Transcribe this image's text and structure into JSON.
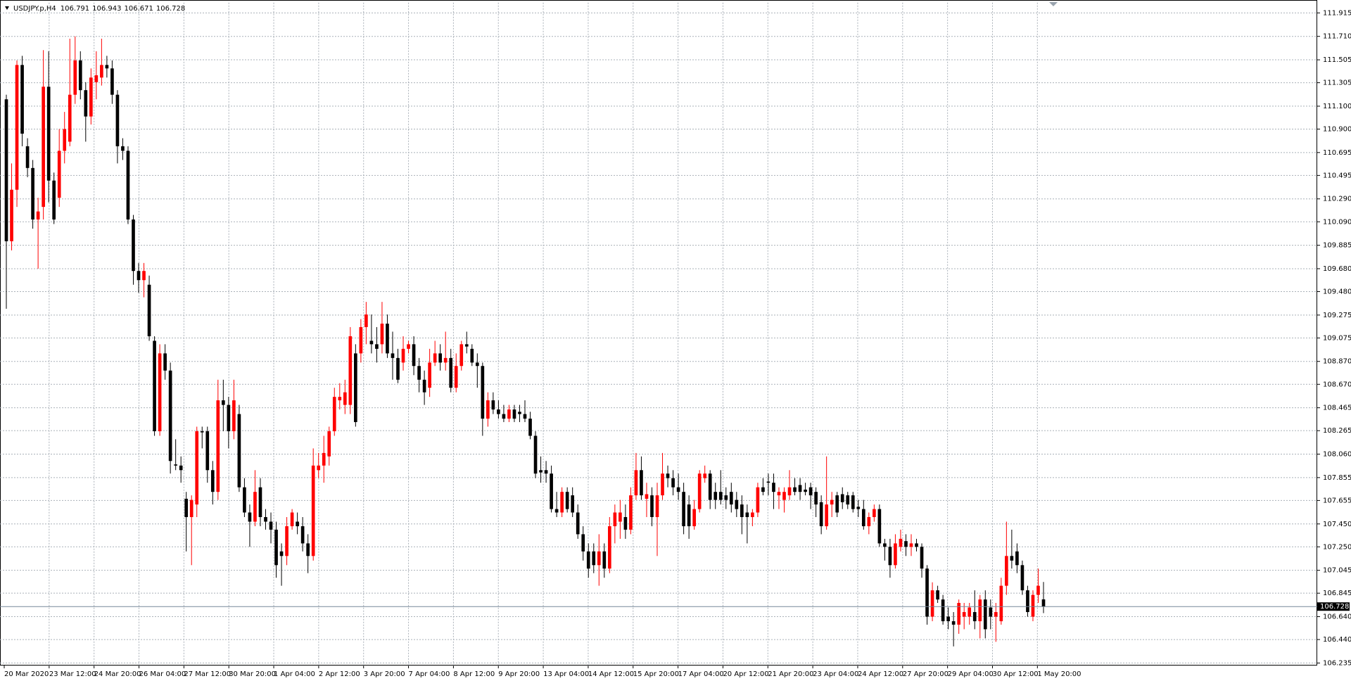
{
  "chart_data": {
    "type": "candlestick",
    "symbol": "USDJPY.p,H4",
    "up_color": "#ff0000",
    "down_color": "#000000",
    "grid": true,
    "ylim": [
      106.213,
      112.005
    ],
    "yticks": [
      111.915,
      {
        "value": 111.71,
        "label": "111.710"
      },
      111.505,
      111.305,
      {
        "value": 111.1,
        "label": "111.100"
      },
      {
        "value": 110.9,
        "label": "110.900"
      },
      110.695,
      110.495,
      {
        "value": 110.29,
        "label": "110.290"
      },
      {
        "value": 110.09,
        "label": "110.090"
      },
      109.885,
      {
        "value": 109.68,
        "label": "109.680"
      },
      {
        "value": 109.48,
        "label": "109.480"
      },
      109.275,
      109.075,
      {
        "value": 108.87,
        "label": "108.870"
      },
      {
        "value": 108.67,
        "label": "108.670"
      },
      108.465,
      108.265,
      {
        "value": 108.06,
        "label": "108.060"
      },
      107.855,
      107.655,
      {
        "value": 107.45,
        "label": "107.450"
      },
      {
        "value": 107.25,
        "label": "107.250"
      },
      107.045,
      106.845,
      {
        "value": 106.64,
        "label": "106.640"
      },
      {
        "value": 106.44,
        "label": "106.440"
      },
      106.235
    ],
    "time_labels": [
      "20 Mar 2020",
      "23 Mar 12:00",
      "24 Mar 20:00",
      "26 Mar 04:00",
      "27 Mar 12:00",
      "30 Mar 20:00",
      "1 Apr 04:00",
      "2 Apr 12:00",
      "3 Apr 20:00",
      "7 Apr 04:00",
      "8 Apr 12:00",
      "9 Apr 20:00",
      "13 Apr 04:00",
      "14 Apr 12:00",
      "15 Apr 20:00",
      "17 Apr 04:00",
      "20 Apr 12:00",
      "21 Apr 20:00",
      "23 Apr 04:00",
      "24 Apr 12:00",
      "27 Apr 20:00",
      "29 Apr 04:00",
      "30 Apr 12:00",
      "1 May 20:00"
    ],
    "candles": [
      [
        111.16,
        111.2,
        109.33,
        109.92
      ],
      [
        109.92,
        110.6,
        109.84,
        110.37
      ],
      [
        110.37,
        111.5,
        110.22,
        111.46
      ],
      [
        111.46,
        111.54,
        110.75,
        110.86
      ],
      [
        110.75,
        110.82,
        110.48,
        110.56
      ],
      [
        110.56,
        110.63,
        110.03,
        110.11
      ],
      [
        110.11,
        110.3,
        109.68,
        110.18
      ],
      [
        110.22,
        111.59,
        110.11,
        111.27
      ],
      [
        111.27,
        111.58,
        110.26,
        110.45
      ],
      [
        110.45,
        110.52,
        110.07,
        110.11
      ],
      [
        110.3,
        110.9,
        110.22,
        110.71
      ],
      [
        110.71,
        111.05,
        110.6,
        110.9
      ],
      [
        110.79,
        111.69,
        110.75,
        111.2
      ],
      [
        111.2,
        111.71,
        111.12,
        111.5
      ],
      [
        111.5,
        111.58,
        111.16,
        111.24
      ],
      [
        111.24,
        111.31,
        110.79,
        111.01
      ],
      [
        111.01,
        111.43,
        110.94,
        111.35
      ],
      [
        111.31,
        111.58,
        111.16,
        111.37
      ],
      [
        111.35,
        111.69,
        111.28,
        111.46
      ],
      [
        111.46,
        111.54,
        111.35,
        111.43
      ],
      [
        111.43,
        111.5,
        111.12,
        111.2
      ],
      [
        111.2,
        111.24,
        110.6,
        110.75
      ],
      [
        110.75,
        110.82,
        110.63,
        110.71
      ],
      [
        110.71,
        110.75,
        110.07,
        110.11
      ],
      [
        110.11,
        110.15,
        109.54,
        109.66
      ],
      [
        109.66,
        109.73,
        109.47,
        109.58
      ],
      [
        109.58,
        109.73,
        109.43,
        109.66
      ],
      [
        109.54,
        109.62,
        109.05,
        109.09
      ],
      [
        109.05,
        109.09,
        108.22,
        108.26
      ],
      [
        108.26,
        109.02,
        108.22,
        108.94
      ],
      [
        108.94,
        109.02,
        108.71,
        108.79
      ],
      [
        108.79,
        108.86,
        107.89,
        108.0
      ],
      [
        107.97,
        108.19,
        107.92,
        107.96
      ],
      [
        107.96,
        108.04,
        107.81,
        107.92
      ],
      [
        107.67,
        107.73,
        107.21,
        107.51
      ],
      [
        107.51,
        107.7,
        107.09,
        107.66
      ],
      [
        107.62,
        108.3,
        107.51,
        108.26
      ],
      [
        108.26,
        108.3,
        108.11,
        108.25
      ],
      [
        108.26,
        108.3,
        107.81,
        107.92
      ],
      [
        107.92,
        108.0,
        107.62,
        107.73
      ],
      [
        107.73,
        108.71,
        107.66,
        108.53
      ],
      [
        108.53,
        108.71,
        108.26,
        108.49
      ],
      [
        108.49,
        108.56,
        108.11,
        108.26
      ],
      [
        108.26,
        108.71,
        108.19,
        108.53
      ],
      [
        108.41,
        108.49,
        107.73,
        107.77
      ],
      [
        107.77,
        107.85,
        107.51,
        107.55
      ],
      [
        107.55,
        107.62,
        107.25,
        107.47
      ],
      [
        107.47,
        107.92,
        107.43,
        107.73
      ],
      [
        107.77,
        107.85,
        107.43,
        107.51
      ],
      [
        107.51,
        107.58,
        107.4,
        107.47
      ],
      [
        107.47,
        107.55,
        107.28,
        107.4
      ],
      [
        107.4,
        107.47,
        106.98,
        107.09
      ],
      [
        107.21,
        107.28,
        106.91,
        107.17
      ],
      [
        107.17,
        107.51,
        107.09,
        107.43
      ],
      [
        107.43,
        107.58,
        107.4,
        107.55
      ],
      [
        107.47,
        107.55,
        107.36,
        107.43
      ],
      [
        107.43,
        107.51,
        107.21,
        107.28
      ],
      [
        107.28,
        107.36,
        107.02,
        107.17
      ],
      [
        107.17,
        108.11,
        107.13,
        107.96
      ],
      [
        107.92,
        108.07,
        107.85,
        107.96
      ],
      [
        107.96,
        108.22,
        107.81,
        108.07
      ],
      [
        108.04,
        108.3,
        107.96,
        108.26
      ],
      [
        108.26,
        108.64,
        108.22,
        108.56
      ],
      [
        108.53,
        108.68,
        108.45,
        108.56
      ],
      [
        108.49,
        108.71,
        108.41,
        108.6
      ],
      [
        108.49,
        109.17,
        108.41,
        109.09
      ],
      [
        108.94,
        109.02,
        108.3,
        108.34
      ],
      [
        108.94,
        109.24,
        108.86,
        109.17
      ],
      [
        109.17,
        109.39,
        109.02,
        109.28
      ],
      [
        109.05,
        109.28,
        108.94,
        109.02
      ],
      [
        109.02,
        109.17,
        108.86,
        108.98
      ],
      [
        109.02,
        109.39,
        108.94,
        109.2
      ],
      [
        109.2,
        109.28,
        108.9,
        108.94
      ],
      [
        108.94,
        109.13,
        108.71,
        108.9
      ],
      [
        108.9,
        108.98,
        108.68,
        108.71
      ],
      [
        108.86,
        109.09,
        108.79,
        108.98
      ],
      [
        108.98,
        109.05,
        108.94,
        109.02
      ],
      [
        109.02,
        109.09,
        108.75,
        108.83
      ],
      [
        108.83,
        108.9,
        108.6,
        108.71
      ],
      [
        108.71,
        108.79,
        108.49,
        108.6
      ],
      [
        108.64,
        108.98,
        108.56,
        108.86
      ],
      [
        108.86,
        109.05,
        108.83,
        108.94
      ],
      [
        108.94,
        109.02,
        108.79,
        108.86
      ],
      [
        108.86,
        109.13,
        108.79,
        108.9
      ],
      [
        108.9,
        108.98,
        108.6,
        108.64
      ],
      [
        108.64,
        108.94,
        108.6,
        108.83
      ],
      [
        108.83,
        109.05,
        108.79,
        109.02
      ],
      [
        109.02,
        109.13,
        108.94,
        109.0
      ],
      [
        108.98,
        109.02,
        108.83,
        108.86
      ],
      [
        108.86,
        108.94,
        108.64,
        108.83
      ],
      [
        108.83,
        108.86,
        108.22,
        108.37
      ],
      [
        108.37,
        108.6,
        108.3,
        108.53
      ],
      [
        108.53,
        108.6,
        108.41,
        108.45
      ],
      [
        108.45,
        108.53,
        108.37,
        108.41
      ],
      [
        108.41,
        108.49,
        108.34,
        108.37
      ],
      [
        108.37,
        108.49,
        108.34,
        108.45
      ],
      [
        108.45,
        108.49,
        108.34,
        108.37
      ],
      [
        108.43,
        108.49,
        108.34,
        108.41
      ],
      [
        108.41,
        108.53,
        108.34,
        108.37
      ],
      [
        108.37,
        108.43,
        108.19,
        108.22
      ],
      [
        108.22,
        108.26,
        107.85,
        107.89
      ],
      [
        107.92,
        108.04,
        107.81,
        107.9
      ],
      [
        107.92,
        108.0,
        107.81,
        107.89
      ],
      [
        107.89,
        107.96,
        107.55,
        107.58
      ],
      [
        107.58,
        107.73,
        107.51,
        107.55
      ],
      [
        107.55,
        107.77,
        107.51,
        107.73
      ],
      [
        107.73,
        107.77,
        107.55,
        107.58
      ],
      [
        107.7,
        107.77,
        107.51,
        107.55
      ],
      [
        107.55,
        107.62,
        107.32,
        107.36
      ],
      [
        107.36,
        107.43,
        107.13,
        107.21
      ],
      [
        107.21,
        107.28,
        106.98,
        107.06
      ],
      [
        107.21,
        107.28,
        107.02,
        107.09
      ],
      [
        107.09,
        107.36,
        106.91,
        107.21
      ],
      [
        107.21,
        107.28,
        106.98,
        107.06
      ],
      [
        107.06,
        107.51,
        107.02,
        107.43
      ],
      [
        107.43,
        107.62,
        107.28,
        107.55
      ],
      [
        107.47,
        107.66,
        107.32,
        107.55
      ],
      [
        107.51,
        107.62,
        107.32,
        107.4
      ],
      [
        107.4,
        107.77,
        107.36,
        107.7
      ],
      [
        107.7,
        108.07,
        107.66,
        107.92
      ],
      [
        107.92,
        108.04,
        107.66,
        107.7
      ],
      [
        107.67,
        107.81,
        107.51,
        107.71
      ],
      [
        107.7,
        107.77,
        107.43,
        107.51
      ],
      [
        107.51,
        107.81,
        107.17,
        107.7
      ],
      [
        107.7,
        108.07,
        107.66,
        107.89
      ],
      [
        107.89,
        107.96,
        107.77,
        107.85
      ],
      [
        107.85,
        107.92,
        107.7,
        107.77
      ],
      [
        107.77,
        107.89,
        107.66,
        107.73
      ],
      [
        107.73,
        107.81,
        107.36,
        107.43
      ],
      [
        107.62,
        107.7,
        107.32,
        107.43
      ],
      [
        107.43,
        107.66,
        107.4,
        107.58
      ],
      [
        107.58,
        107.92,
        107.55,
        107.89
      ],
      [
        107.85,
        107.96,
        107.81,
        107.89
      ],
      [
        107.89,
        107.92,
        107.58,
        107.66
      ],
      [
        107.73,
        107.81,
        107.58,
        107.66
      ],
      [
        107.73,
        107.92,
        107.62,
        107.66
      ],
      [
        107.7,
        107.77,
        107.58,
        107.66
      ],
      [
        107.73,
        107.81,
        107.55,
        107.62
      ],
      [
        107.66,
        107.73,
        107.51,
        107.58
      ],
      [
        107.62,
        107.7,
        107.36,
        107.51
      ],
      [
        107.55,
        107.62,
        107.28,
        107.51
      ],
      [
        107.51,
        107.58,
        107.43,
        107.55
      ],
      [
        107.55,
        107.81,
        107.51,
        107.77
      ],
      [
        107.77,
        107.85,
        107.7,
        107.73
      ],
      [
        107.82,
        107.89,
        107.7,
        107.81
      ],
      [
        107.81,
        107.89,
        107.58,
        107.73
      ],
      [
        107.7,
        107.77,
        107.58,
        107.73
      ],
      [
        107.66,
        107.77,
        107.55,
        107.73
      ],
      [
        107.7,
        107.92,
        107.66,
        107.77
      ],
      [
        107.77,
        107.85,
        107.7,
        107.73
      ],
      [
        107.79,
        107.85,
        107.66,
        107.73
      ],
      [
        107.75,
        107.81,
        107.7,
        107.73
      ],
      [
        107.77,
        107.81,
        107.58,
        107.7
      ],
      [
        107.73,
        107.77,
        107.51,
        107.62
      ],
      [
        107.64,
        107.7,
        107.36,
        107.43
      ],
      [
        107.43,
        108.04,
        107.4,
        107.62
      ],
      [
        107.62,
        107.73,
        107.51,
        107.66
      ],
      [
        107.7,
        107.73,
        107.51,
        107.55
      ],
      [
        107.71,
        107.77,
        107.58,
        107.64
      ],
      [
        107.7,
        107.73,
        107.58,
        107.62
      ],
      [
        107.7,
        107.73,
        107.55,
        107.58
      ],
      [
        107.6,
        107.66,
        107.51,
        107.58
      ],
      [
        107.58,
        107.66,
        107.4,
        107.43
      ],
      [
        107.43,
        107.55,
        107.36,
        107.51
      ],
      [
        107.51,
        107.62,
        107.47,
        107.58
      ],
      [
        107.58,
        107.62,
        107.25,
        107.28
      ],
      [
        107.28,
        107.32,
        107.13,
        107.25
      ],
      [
        107.25,
        107.32,
        106.98,
        107.09
      ],
      [
        107.09,
        107.36,
        107.06,
        107.28
      ],
      [
        107.25,
        107.4,
        107.21,
        107.32
      ],
      [
        107.3,
        107.36,
        107.17,
        107.25
      ],
      [
        107.25,
        107.36,
        107.17,
        107.28
      ],
      [
        107.28,
        107.32,
        107.21,
        107.25
      ],
      [
        107.25,
        107.28,
        106.98,
        107.06
      ],
      [
        107.06,
        107.09,
        106.57,
        106.64
      ],
      [
        106.64,
        106.94,
        106.6,
        106.87
      ],
      [
        106.87,
        106.91,
        106.76,
        106.79
      ],
      [
        106.79,
        106.83,
        106.57,
        106.6
      ],
      [
        106.64,
        106.72,
        106.53,
        106.6
      ],
      [
        106.6,
        106.68,
        106.38,
        106.57
      ],
      [
        106.57,
        106.79,
        106.49,
        106.76
      ],
      [
        106.64,
        106.76,
        106.53,
        106.68
      ],
      [
        106.64,
        106.76,
        106.57,
        106.72
      ],
      [
        106.68,
        106.87,
        106.53,
        106.6
      ],
      [
        106.6,
        106.83,
        106.45,
        106.79
      ],
      [
        106.79,
        106.87,
        106.45,
        106.53
      ],
      [
        106.72,
        106.79,
        106.53,
        106.64
      ],
      [
        106.64,
        106.76,
        106.42,
        106.68
      ],
      [
        106.6,
        106.98,
        106.57,
        106.91
      ],
      [
        106.91,
        107.47,
        106.83,
        107.17
      ],
      [
        107.17,
        107.4,
        107.06,
        107.13
      ],
      [
        107.21,
        107.28,
        107.02,
        107.09
      ],
      [
        107.09,
        107.13,
        106.83,
        106.87
      ],
      [
        106.87,
        106.91,
        106.64,
        106.68
      ],
      [
        106.64,
        106.87,
        106.6,
        106.83
      ],
      [
        106.83,
        107.06,
        106.76,
        106.91
      ],
      [
        106.791,
        106.943,
        106.671,
        106.728
      ]
    ]
  }
}
